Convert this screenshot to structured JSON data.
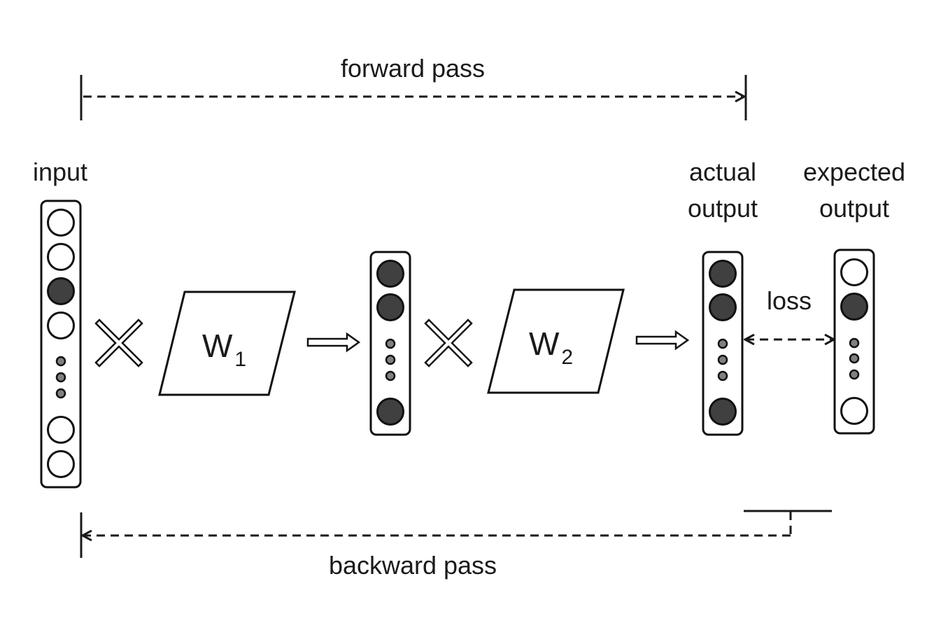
{
  "labels": {
    "forward": "forward pass",
    "backward": "backward  pass",
    "input": "input",
    "actual_line1": "actual",
    "actual_line2": "output",
    "expected_line1": "expected",
    "expected_line2": "output",
    "loss": "loss"
  },
  "weights": {
    "w1": {
      "letter": "W",
      "index": "1"
    },
    "w2": {
      "letter": "W",
      "index": "2"
    }
  },
  "vectors": {
    "input": [
      "open",
      "open",
      "filled",
      "open",
      "dot",
      "dot",
      "dot",
      "open",
      "open"
    ],
    "hidden": [
      "filled",
      "filled",
      "dot",
      "dot",
      "dot",
      "filled"
    ],
    "actual_output": [
      "filled",
      "filled",
      "dot",
      "dot",
      "dot",
      "filled"
    ],
    "expected_output": [
      "open",
      "filled",
      "dot",
      "dot",
      "dot",
      "open"
    ]
  },
  "colors": {
    "filled_node": "#404040",
    "dot_node": "#808080",
    "stroke": "#111111"
  }
}
